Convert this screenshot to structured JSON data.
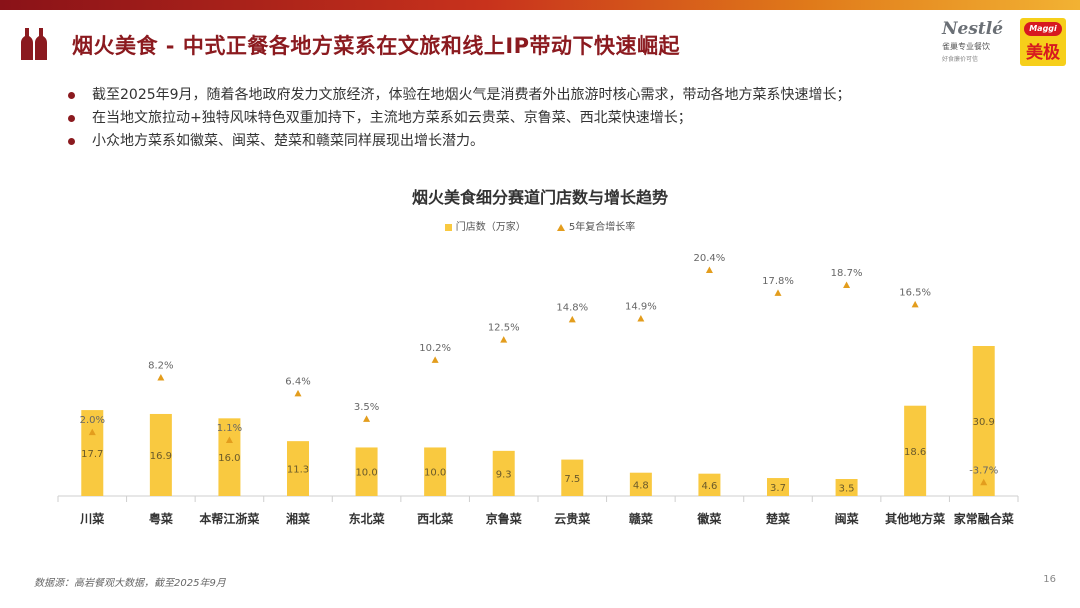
{
  "header": {
    "title": "烟火美食 - 中式正餐各地方菜系在文旅和线上IP带动下快速崛起",
    "brand_colors": {
      "accent": "#8b1a1f",
      "bar": "#f9c940",
      "marker": "#e39d1d"
    }
  },
  "logos": {
    "nestle_word": "Nestlé",
    "nestle_sub": "雀巢专业餐饮",
    "nestle_tag": "好食廉价可信",
    "maggi_word": "Maggi",
    "maggi_cn": "美极"
  },
  "bullets": [
    "截至2025年9月，随着各地政府发力文旅经济，体验在地烟火气是消费者外出旅游时核心需求，带动各地方菜系快速增长；",
    "在当地文旅拉动+独特风味特色双重加持下，主流地方菜系如云贵菜、京鲁菜、西北菜快速增长；",
    "小众地方菜系如徽菜、闽菜、楚菜和赣菜同样展现出增长潜力。"
  ],
  "chart_data": {
    "type": "bar",
    "title": "烟火美食细分赛道门店数与增长趋势",
    "legend_position": "top-center",
    "categories": [
      "川菜",
      "粤菜",
      "本帮江浙菜",
      "湘菜",
      "东北菜",
      "西北菜",
      "京鲁菜",
      "云贵菜",
      "赣菜",
      "徽菜",
      "楚菜",
      "闽菜",
      "其他地方菜",
      "家常融合菜"
    ],
    "series": [
      {
        "name": "门店数（万家）",
        "kind": "bar",
        "values": [
          17.7,
          16.9,
          16.0,
          11.3,
          10.0,
          10.0,
          9.3,
          7.5,
          4.8,
          4.6,
          3.7,
          3.5,
          18.6,
          30.9
        ]
      },
      {
        "name": "5年复合增长率",
        "kind": "marker",
        "values": [
          2.0,
          8.2,
          1.1,
          6.4,
          3.5,
          10.2,
          12.5,
          14.8,
          14.9,
          20.4,
          17.8,
          18.7,
          16.5,
          -3.7
        ],
        "labels": [
          "2.0%",
          "8.2%",
          "1.1%",
          "6.4%",
          "3.5%",
          "10.2%",
          "12.5%",
          "14.8%",
          "14.9%",
          "20.4%",
          "17.8%",
          "18.7%",
          "16.5%",
          "-3.7%"
        ]
      }
    ]
  },
  "footer": {
    "source": "数据源：高岩餐观大数据，截至2025年9月",
    "page_number": "16"
  }
}
